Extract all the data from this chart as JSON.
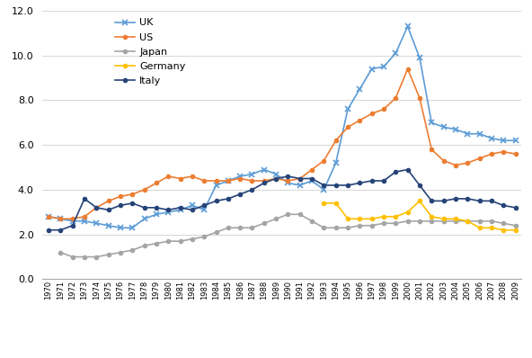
{
  "years": [
    1970,
    1971,
    1972,
    1973,
    1974,
    1975,
    1976,
    1977,
    1978,
    1979,
    1980,
    1981,
    1982,
    1983,
    1984,
    1985,
    1986,
    1987,
    1988,
    1989,
    1990,
    1991,
    1992,
    1993,
    1994,
    1995,
    1996,
    1997,
    1998,
    1999,
    2000,
    2001,
    2002,
    2003,
    2004,
    2005,
    2006,
    2007,
    2008,
    2009
  ],
  "UK": [
    2.8,
    2.7,
    2.6,
    2.6,
    2.5,
    2.4,
    2.3,
    2.3,
    2.7,
    2.9,
    3.0,
    3.1,
    3.3,
    3.1,
    4.2,
    4.4,
    4.6,
    4.7,
    4.9,
    4.7,
    4.3,
    4.2,
    4.4,
    4.0,
    5.2,
    7.6,
    8.5,
    9.4,
    9.5,
    10.1,
    11.3,
    9.9,
    7.0,
    6.8,
    6.7,
    6.5,
    6.5,
    6.3,
    6.2,
    6.2
  ],
  "US": [
    2.8,
    2.7,
    2.7,
    2.8,
    3.2,
    3.5,
    3.7,
    3.8,
    4.0,
    4.3,
    4.6,
    4.5,
    4.6,
    4.4,
    4.4,
    4.4,
    4.5,
    4.4,
    4.4,
    4.5,
    4.4,
    4.5,
    4.9,
    5.3,
    6.2,
    6.8,
    7.1,
    7.4,
    7.6,
    8.1,
    9.4,
    8.1,
    5.8,
    5.3,
    5.1,
    5.2,
    5.4,
    5.6,
    5.7,
    5.6
  ],
  "Japan": [
    null,
    1.2,
    1.0,
    1.0,
    1.0,
    1.1,
    1.2,
    1.3,
    1.5,
    1.6,
    1.7,
    1.7,
    1.8,
    1.9,
    2.1,
    2.3,
    2.3,
    2.3,
    2.5,
    2.7,
    2.9,
    2.9,
    2.6,
    2.3,
    2.3,
    2.3,
    2.4,
    2.4,
    2.5,
    2.5,
    2.6,
    2.6,
    2.6,
    2.6,
    2.6,
    2.6,
    2.6,
    2.6,
    2.5,
    2.4
  ],
  "Germany": [
    null,
    null,
    null,
    null,
    null,
    null,
    null,
    null,
    null,
    null,
    null,
    null,
    null,
    null,
    null,
    null,
    null,
    null,
    null,
    null,
    null,
    null,
    null,
    3.4,
    3.4,
    2.7,
    2.7,
    2.7,
    2.8,
    2.8,
    3.0,
    3.5,
    2.8,
    2.7,
    2.7,
    2.6,
    2.3,
    2.3,
    2.2,
    2.2
  ],
  "Italy": [
    2.2,
    2.2,
    2.4,
    3.6,
    3.2,
    3.1,
    3.3,
    3.4,
    3.2,
    3.2,
    3.1,
    3.2,
    3.1,
    3.3,
    3.5,
    3.6,
    3.8,
    4.0,
    4.3,
    4.5,
    4.6,
    4.5,
    4.5,
    4.2,
    4.2,
    4.2,
    4.3,
    4.4,
    4.4,
    4.8,
    4.9,
    4.2,
    3.5,
    3.5,
    3.6,
    3.6,
    3.5,
    3.5,
    3.3,
    3.2
  ],
  "colors": {
    "UK": "#5B9BD5",
    "US": "#ED7D31",
    "Japan": "#A5A5A5",
    "Germany": "#FFC000",
    "Italy": "#264478"
  },
  "ylim": [
    0.0,
    12.0
  ],
  "yticks": [
    0.0,
    2.0,
    4.0,
    6.0,
    8.0,
    10.0,
    12.0
  ],
  "background_color": "#FFFFFF",
  "grid_color": "#D9D9D9"
}
